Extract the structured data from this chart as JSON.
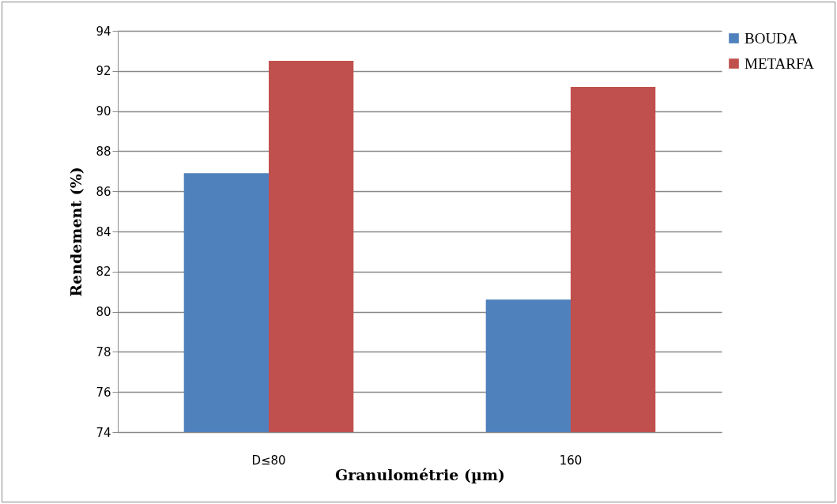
{
  "chart_data": {
    "type": "bar",
    "xlabel": "Granulométrie (µm)",
    "ylabel": "Rendement (%)",
    "categories": [
      "D≤80",
      "160"
    ],
    "series": [
      {
        "name": "BOUDA",
        "color": "#4f81bd",
        "values": [
          86.9,
          80.6
        ]
      },
      {
        "name": "METARFA",
        "color": "#c0504d",
        "values": [
          92.5,
          91.2
        ]
      }
    ],
    "ylim": [
      74,
      94
    ],
    "yticks": [
      74,
      76,
      78,
      80,
      82,
      84,
      86,
      88,
      90,
      92,
      94
    ],
    "grid": "y",
    "legend": "right"
  }
}
